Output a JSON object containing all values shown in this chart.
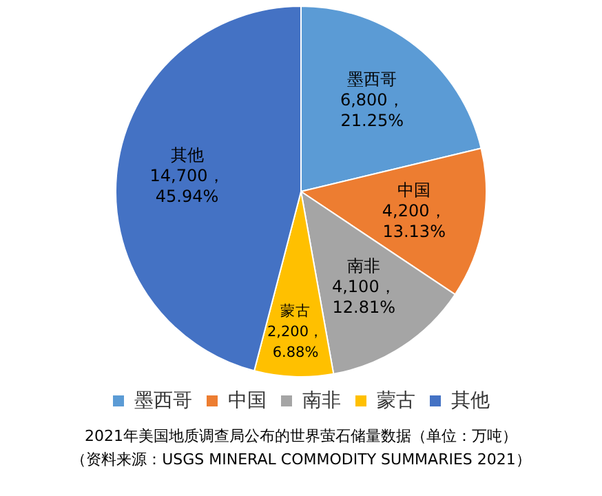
{
  "chart_data": {
    "type": "pie",
    "categories": [
      "墨西哥",
      "中国",
      "南非",
      "蒙古",
      "其他"
    ],
    "values": [
      6800,
      4200,
      4100,
      2200,
      14700
    ],
    "colors": [
      "#5b9bd5",
      "#ed7d31",
      "#a5a5a5",
      "#ffc000",
      "#4472c4"
    ],
    "value_labels": [
      "6,800，\n21.25%",
      "4,200，\n13.13%",
      "4,100，\n12.81%",
      "2,200，\n6.88%",
      "14,700，\n45.94%"
    ],
    "legend": "bottom",
    "annotations": [
      "2021年美国地质调查局公布的世界萤石储量数据（单位：万吨）",
      "（资料来源：USGS MINERAL COMMODITY SUMMARIES 2021）"
    ]
  }
}
